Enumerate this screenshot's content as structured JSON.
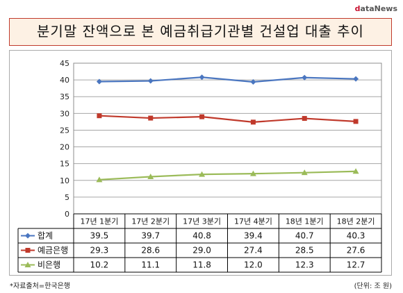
{
  "logo": {
    "d": "d",
    "rest": "ataNews"
  },
  "title": "분기말 잔액으로 본 예금취급기관별 건설업 대출 추이",
  "source_note": "*자료출처=한국은행",
  "unit_note": "(단위: 조 원)",
  "chart_data": {
    "type": "line",
    "title": "분기말 잔액으로 본 예금취급기관별 건설업 대출 추이",
    "categories": [
      "17년 1분기",
      "17년 2분기",
      "17년 3분기",
      "17년 4분기",
      "18년 1분기",
      "18년 2분기"
    ],
    "ylim": [
      0,
      45
    ],
    "yticks": [
      0,
      5,
      10,
      15,
      20,
      25,
      30,
      35,
      40,
      45
    ],
    "grid": true,
    "legend": "data-table",
    "series": [
      {
        "name": "합계",
        "color": "#4a76c0",
        "marker": "diamond",
        "values": [
          39.5,
          39.7,
          40.8,
          39.4,
          40.7,
          40.3
        ],
        "labels": [
          "39.5",
          "39.7",
          "40.8",
          "39.4",
          "40.7",
          "40.3"
        ]
      },
      {
        "name": "예금은행",
        "color": "#c0392b",
        "marker": "square",
        "values": [
          29.3,
          28.6,
          29.0,
          27.4,
          28.5,
          27.6
        ],
        "labels": [
          "29.3",
          "28.6",
          "29.0",
          "27.4",
          "28.5",
          "27.6"
        ]
      },
      {
        "name": "비은행",
        "color": "#9bbb59",
        "marker": "triangle",
        "values": [
          10.2,
          11.1,
          11.8,
          12.0,
          12.3,
          12.7
        ],
        "labels": [
          "10.2",
          "11.1",
          "11.8",
          "12.0",
          "12.3",
          "12.7"
        ]
      }
    ]
  }
}
